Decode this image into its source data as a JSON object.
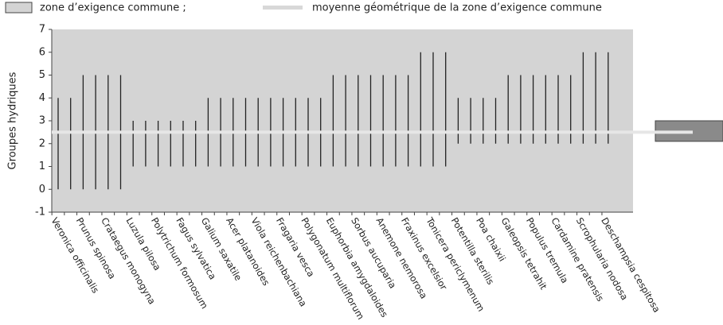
{
  "chart_data": {
    "type": "range",
    "legend": {
      "zone": "zone d’exigence commune ;",
      "mean": "moyenne géométrique de la zone d’exigence commune"
    },
    "ylabel": "Groupes hydriques",
    "categories": [
      "Veronica officinalis",
      null,
      "Prunus spinosa",
      null,
      "Crataegus monogyna",
      null,
      "Luzula pilosa",
      null,
      "Polytrichum formosum",
      null,
      "Fagus sylvatica",
      null,
      "Galium saxatile",
      null,
      "Acer platanoides",
      null,
      "Viola reichenbachiana",
      null,
      "Fragaria vesca",
      null,
      "Polygonatum multiflorum",
      null,
      "Euphorbia amygdaloides",
      null,
      "Sorbus aucuparia",
      null,
      "Anemone nemorosa",
      null,
      "Fraxinus excelsior",
      null,
      "Tonicera periclymenum",
      null,
      "Potentilla sterilis",
      null,
      "Poa chaixii",
      null,
      "Galeopsis tetrahit",
      null,
      "Populus tremula",
      null,
      "Cardamine pratensis",
      null,
      "Scrophularia nodosa",
      null,
      "Deschampsia cespitosa"
    ],
    "low": [
      0,
      0,
      0,
      0,
      0,
      0,
      1,
      1,
      1,
      1,
      1,
      1,
      1,
      1,
      1,
      1,
      1,
      1,
      1,
      1,
      1,
      1,
      1,
      1,
      1,
      1,
      1,
      1,
      1,
      1,
      1,
      1,
      2,
      2,
      2,
      2,
      2,
      2,
      2,
      2,
      2,
      2,
      2,
      2,
      2
    ],
    "high": [
      4,
      4,
      5,
      5,
      5,
      5,
      3,
      3,
      3,
      3,
      3,
      3,
      4,
      4,
      4,
      4,
      4,
      4,
      4,
      4,
      4,
      4,
      5,
      5,
      5,
      5,
      5,
      5,
      5,
      6,
      6,
      6,
      4,
      4,
      4,
      4,
      5,
      5,
      5,
      5,
      5,
      5,
      6,
      6,
      6
    ],
    "color": "#222222",
    "background": "#d4d4d4",
    "zone": [
      2.1,
      3
    ],
    "zone_color": "#8a8a8a",
    "mean": 2.5,
    "mean_color": "#e6e6e6",
    "ylim": [
      -1,
      7
    ],
    "yticks": [
      -1,
      0,
      1,
      2,
      3,
      4,
      5,
      6,
      7
    ]
  }
}
